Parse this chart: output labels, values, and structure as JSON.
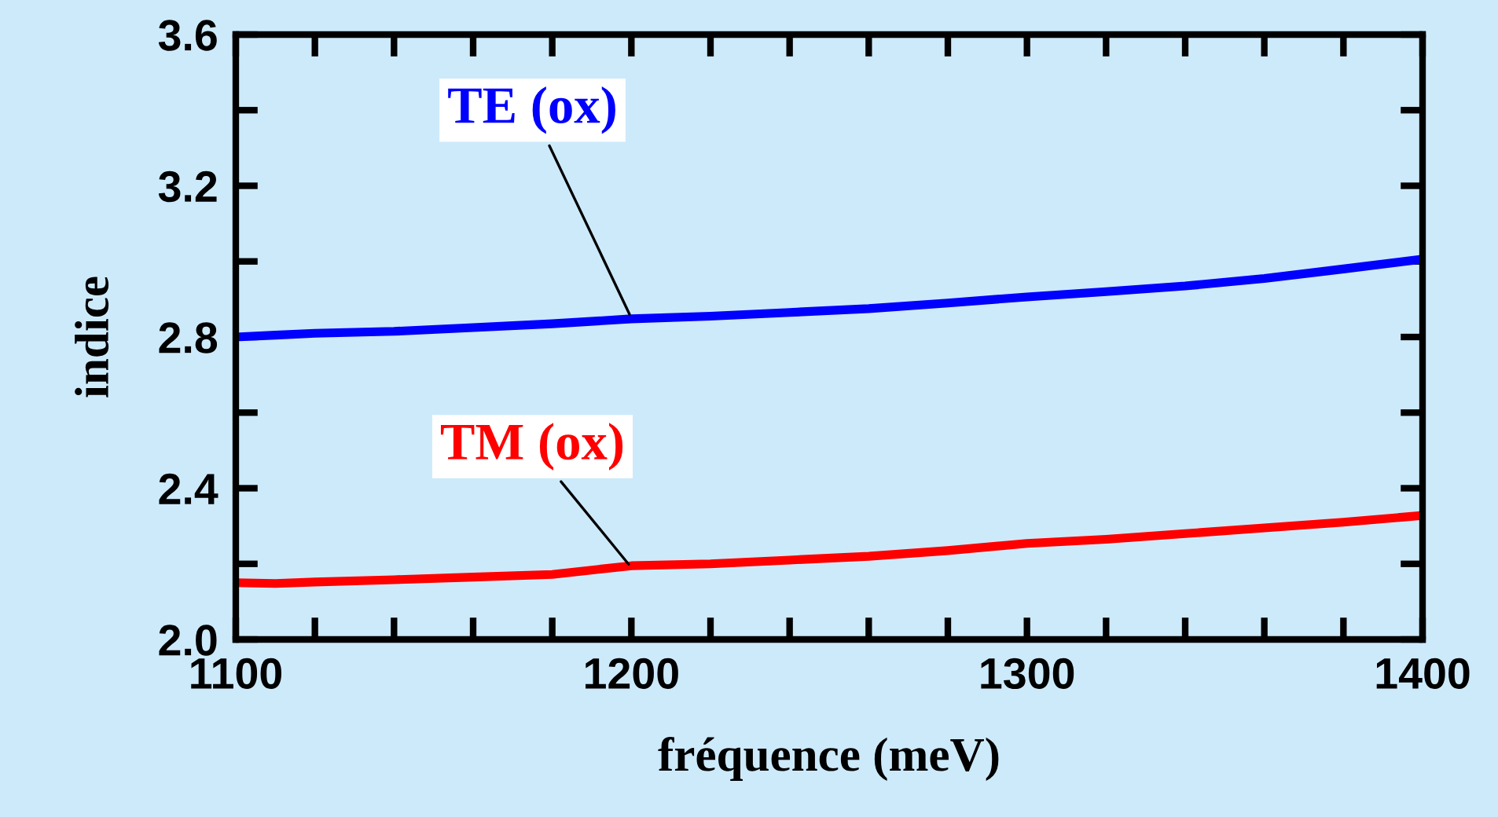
{
  "chart_data": {
    "type": "line",
    "xlabel": "fréquence (meV)",
    "ylabel": "indice",
    "x": [
      1100,
      1110,
      1120,
      1140,
      1160,
      1180,
      1200,
      1220,
      1240,
      1260,
      1280,
      1300,
      1320,
      1340,
      1360,
      1380,
      1400
    ],
    "series": [
      {
        "color": "#0000ff",
        "values": [
          2.8,
          2.805,
          2.81,
          2.815,
          2.825,
          2.835,
          2.848,
          2.855,
          2.865,
          2.875,
          2.89,
          2.906,
          2.92,
          2.935,
          2.955,
          2.98,
          3.006
        ]
      },
      {
        "color": "#ff0000",
        "values": [
          2.15,
          2.148,
          2.152,
          2.158,
          2.165,
          2.172,
          2.195,
          2.2,
          2.21,
          2.22,
          2.235,
          2.254,
          2.265,
          2.28,
          2.295,
          2.31,
          2.328
        ]
      }
    ],
    "annotations": [
      {
        "text": "TE (ox)",
        "x": 1200,
        "y": 2.85
      },
      {
        "text": "TM (ox)",
        "x": 1200,
        "y": 2.19
      }
    ],
    "xlim": [
      1100,
      1400
    ],
    "ylim": [
      2.0,
      3.6
    ],
    "xticks": [
      1100,
      {
        "value": 1120,
        "label": null
      },
      {
        "value": 1140,
        "label": null
      },
      {
        "value": 1160,
        "label": null
      },
      {
        "value": 1180,
        "label": null
      },
      1200,
      {
        "value": 1220,
        "label": null
      },
      {
        "value": 1240,
        "label": null
      },
      {
        "value": 1260,
        "label": null
      },
      {
        "value": 1280,
        "label": null
      },
      1300,
      {
        "value": 1320,
        "label": null
      },
      {
        "value": 1340,
        "label": null
      },
      {
        "value": 1360,
        "label": null
      },
      {
        "value": 1380,
        "label": null
      },
      1400
    ],
    "yticks": [
      {
        "value": 2.0,
        "label": "2.0"
      },
      {
        "value": 2.2,
        "label": null
      },
      {
        "value": 2.4,
        "label": "2.4"
      },
      {
        "value": 2.6,
        "label": null
      },
      {
        "value": 2.8,
        "label": "2.8"
      },
      {
        "value": 3.0,
        "label": null
      },
      {
        "value": 3.2,
        "label": "3.2"
      },
      {
        "value": 3.4,
        "label": null
      },
      {
        "value": 3.6,
        "label": "3.6"
      }
    ],
    "grid": false,
    "legend": false,
    "marker": "none",
    "line_style": "solid"
  }
}
